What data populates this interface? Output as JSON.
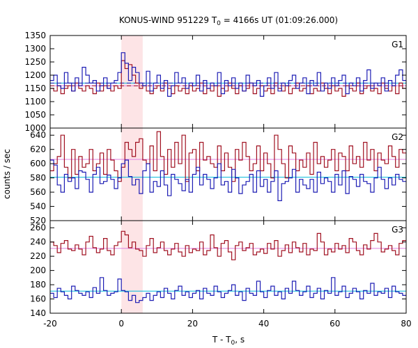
{
  "chart_data": {
    "type": "line",
    "title_main": "KONUS-WIND 951229 T",
    "title_sub": "0",
    "title_rest": " = 4166s UT (01:09:26.000)",
    "xlabel_main": "T - T",
    "xlabel_sub": "0",
    "xlabel_rest": ", s",
    "ylabel": "counts / sec",
    "xlim": [
      -20,
      80
    ],
    "x_ticks": [
      -20,
      0,
      20,
      40,
      60,
      80
    ],
    "highlight_interval": [
      0,
      6
    ],
    "colors": {
      "series_a": "#1c1cb4",
      "series_b": "#a01020",
      "background_line_a": "#00b8d8",
      "background_line_b": "#e080e0",
      "highlight": "#fde4e6",
      "dashed_a": "#1c1cb4",
      "dashed_b": "#a01020"
    },
    "panels": [
      {
        "name": "G1",
        "ylim": [
          1000,
          1350
        ],
        "y_ticks": [
          1000,
          1050,
          1100,
          1150,
          1200,
          1250,
          1300,
          1350
        ],
        "background_a": 1170,
        "background_b": 1160,
        "series": [
          {
            "color_key": "series_a",
            "start": -20,
            "step": 1,
            "values": [
              1180,
              1200,
              1160,
              1150,
              1210,
              1170,
              1140,
              1190,
              1160,
              1230,
              1200,
              1170,
              1180,
              1140,
              1160,
              1190,
              1150,
              1170,
              1180,
              1210,
              1285,
              1245,
              1180,
              1230,
              1210,
              1170,
              1160,
              1215,
              1140,
              1170,
              1200,
              1150,
              1180,
              1120,
              1160,
              1210,
              1170,
              1190,
              1150,
              1170,
              1160,
              1200,
              1140,
              1180,
              1150,
              1170,
              1160,
              1210,
              1130,
              1180,
              1160,
              1190,
              1150,
              1170,
              1140,
              1200,
              1170,
              1160,
              1180,
              1120,
              1160,
              1190,
              1150,
              1210,
              1140,
              1170,
              1160,
              1180,
              1200,
              1150,
              1170,
              1190,
              1130,
              1180,
              1160,
              1210,
              1140,
              1170,
              1150,
              1190,
              1160,
              1180,
              1200,
              1130,
              1170,
              1160,
              1190,
              1140,
              1180,
              1220,
              1150,
              1170,
              1160,
              1190,
              1140,
              1180,
              1160,
              1200,
              1220,
              1180
            ]
          },
          {
            "color_key": "series_b",
            "start": -20,
            "step": 1,
            "values": [
              1150,
              1140,
              1160,
              1130,
              1150,
              1160,
              1140,
              1170,
              1150,
              1140,
              1160,
              1150,
              1130,
              1170,
              1140,
              1160,
              1150,
              1140,
              1160,
              1150,
              1255,
              1225,
              1240,
              1200,
              1170,
              1150,
              1160,
              1140,
              1130,
              1150,
              1160,
              1140,
              1170,
              1150,
              1130,
              1160,
              1140,
              1150,
              1130,
              1160,
              1140,
              1150,
              1170,
              1130,
              1150,
              1140,
              1160,
              1120,
              1150,
              1140,
              1170,
              1150,
              1130,
              1160,
              1140,
              1150,
              1170,
              1130,
              1150,
              1160,
              1140,
              1150,
              1130,
              1170,
              1150,
              1140,
              1160,
              1130,
              1150,
              1170,
              1140,
              1150,
              1160,
              1130,
              1150,
              1140,
              1170,
              1150,
              1130,
              1160,
              1140,
              1150,
              1120,
              1160,
              1150,
              1140,
              1170,
              1130,
              1150,
              1160,
              1140,
              1150,
              1130,
              1170,
              1150,
              1140,
              1160,
              1130,
              1170,
              1150
            ]
          }
        ],
        "dashed_a": 1170,
        "dashed_b": 1160
      },
      {
        "name": "G2",
        "ylim": [
          520,
          650
        ],
        "y_ticks": [
          520,
          540,
          560,
          580,
          600,
          620,
          640
        ],
        "background_a": 581,
        "background_b": 606,
        "series": [
          {
            "color_key": "series_a",
            "start": -20,
            "step": 1,
            "values": [
              605,
              598,
              570,
              560,
              585,
              575,
              580,
              565,
              590,
              588,
              578,
              560,
              585,
              595,
              572,
              575,
              584,
              578,
              565,
              580,
              600,
              605,
              582,
              570,
              578,
              558,
              590,
              600,
              560,
              575,
              568,
              590,
              570,
              555,
              585,
              578,
              572,
              562,
              578,
              560,
              585,
              595,
              570,
              585,
              578,
              565,
              580,
              600,
              570,
              575,
              560,
              592,
              580,
              558,
              570,
              575,
              585,
              560,
              590,
              568,
              578,
              560,
              575,
              590,
              548,
              572,
              575,
              580,
              592,
              560,
              578,
              570,
              565,
              578,
              560,
              588,
              572,
              580,
              575,
              560,
              585,
              570,
              590,
              558,
              582,
              578,
              568,
              585,
              575,
              572,
              560,
              580,
              595,
              578,
              565,
              580,
              570,
              585,
              578,
              575
            ]
          },
          {
            "color_key": "series_b",
            "start": -20,
            "step": 1,
            "values": [
              590,
              600,
              610,
              640,
              595,
              580,
              620,
              585,
              610,
              595,
              600,
              620,
              590,
              600,
              615,
              585,
              620,
              605,
              590,
              575,
              595,
              630,
              620,
              610,
              630,
              635,
              605,
              600,
              625,
              590,
              645,
              610,
              585,
              620,
              595,
              630,
              600,
              640,
              575,
              615,
              620,
              590,
              630,
              605,
              610,
              600,
              595,
              625,
              590,
              615,
              595,
              575,
              620,
              605,
              630,
              610,
              590,
              600,
              625,
              590,
              615,
              600,
              580,
              640,
              620,
              600,
              580,
              625,
              615,
              590,
              605,
              595,
              615,
              585,
              630,
              600,
              610,
              595,
              605,
              620,
              590,
              615,
              610,
              590,
              625,
              600,
              610,
              595,
              630,
              605,
              620,
              590,
              615,
              605,
              600,
              625,
              610,
              595,
              620,
              615
            ]
          }
        ],
        "dashed_a": 581,
        "dashed_b": 606
      },
      {
        "name": "G3",
        "ylim": [
          140,
          270
        ],
        "y_ticks": [
          140,
          160,
          180,
          200,
          220,
          240,
          260
        ],
        "background_a": 171,
        "background_b": 231,
        "series": [
          {
            "color_key": "series_a",
            "start": -20,
            "step": 1,
            "values": [
              168,
              162,
              175,
              170,
              165,
              160,
              178,
              172,
              168,
              165,
              170,
              162,
              176,
              168,
              190,
              172,
              165,
              168,
              170,
              188,
              172,
              170,
              158,
              165,
              155,
              158,
              162,
              168,
              158,
              165,
              170,
              162,
              175,
              168,
              160,
              172,
              178,
              165,
              170,
              162,
              168,
              172,
              160,
              175,
              168,
              165,
              178,
              170,
              162,
              168,
              172,
              180,
              165,
              170,
              158,
              175,
              168,
              165,
              185,
              170,
              162,
              172,
              178,
              165,
              170,
              160,
              175,
              168,
              185,
              172,
              165,
              170,
              178,
              162,
              168,
              175,
              160,
              172,
              168,
              190,
              165,
              170,
              178,
              162,
              168,
              175,
              170,
              160,
              172,
              168,
              182,
              165,
              170,
              168,
              175,
              162,
              178,
              170,
              168,
              165
            ]
          },
          {
            "color_key": "series_b",
            "start": -20,
            "step": 1,
            "values": [
              240,
              235,
              225,
              238,
              242,
              230,
              228,
              236,
              230,
              222,
              240,
              248,
              232,
              225,
              230,
              245,
              228,
              222,
              235,
              240,
              255,
              250,
              232,
              240,
              230,
              228,
              220,
              235,
              245,
              225,
              232,
              240,
              228,
              222,
              230,
              238,
              226,
              220,
              235,
              225,
              230,
              228,
              240,
              222,
              228,
              250,
              232,
              220,
              238,
              242,
              226,
              215,
              235,
              240,
              228,
              232,
              238,
              222,
              226,
              230,
              224,
              238,
              230,
              242,
              220,
              228,
              236,
              225,
              240,
              232,
              226,
              238,
              222,
              230,
              228,
              252,
              240,
              222,
              230,
              226,
              238,
              230,
              235,
              225,
              245,
              240,
              228,
              222,
              236,
              230,
              242,
              252,
              240,
              226,
              230,
              235,
              228,
              222,
              238,
              242
            ]
          }
        ],
        "dashed_a": 171,
        "dashed_b": 231
      }
    ]
  }
}
